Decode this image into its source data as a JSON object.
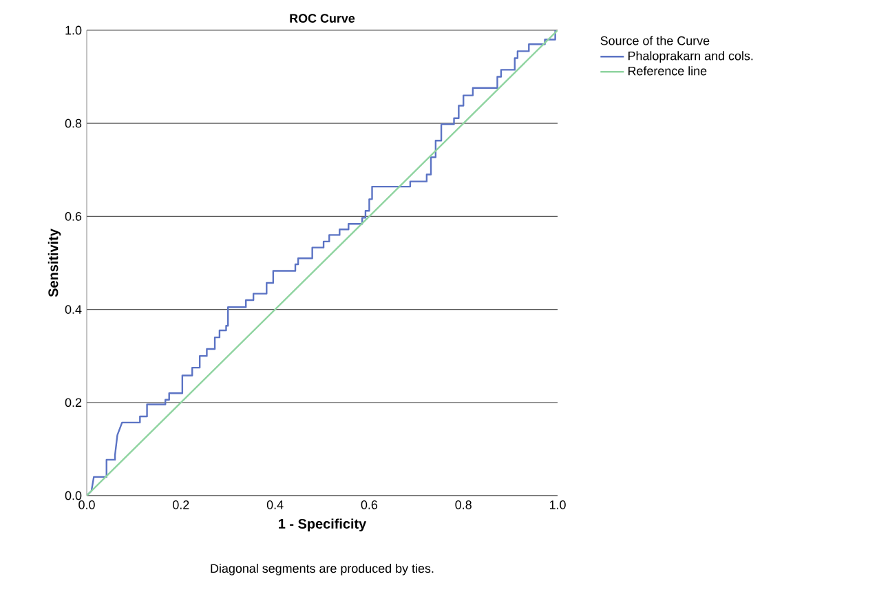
{
  "chart_data": {
    "type": "line",
    "title": "ROC Curve",
    "xlabel": "1 - Specificity",
    "ylabel": "Sensitivity",
    "legend_title": "Source of the Curve",
    "annotations": [
      "Diagonal segments are produced by ties."
    ],
    "xlim": [
      0,
      1
    ],
    "ylim": [
      0,
      1
    ],
    "xticks": [
      {
        "value": 0,
        "label": "0.0"
      },
      {
        "value": 0.2,
        "label": "0.2"
      },
      {
        "value": 0.4,
        "label": "0.4"
      },
      {
        "value": 0.6,
        "label": "0.6"
      },
      {
        "value": 0.8,
        "label": "0.8"
      },
      {
        "value": 1,
        "label": "1.0"
      }
    ],
    "yticks": [
      {
        "value": 0,
        "label": "0.0"
      },
      {
        "value": 0.2,
        "label": "0.2"
      },
      {
        "value": 0.4,
        "label": "0.4"
      },
      {
        "value": 0.6,
        "label": "0.6"
      },
      {
        "value": 0.8,
        "label": "0.8"
      },
      {
        "value": 1,
        "label": "1.0"
      }
    ],
    "grid": "y",
    "legend": "top right",
    "marker": "none",
    "line_style": "solid",
    "series": [
      {
        "name": "Phaloprakarn and cols.",
        "color": "#5b73c4",
        "x": [
          0,
          0.01,
          0.015,
          0.042,
          0.042,
          0.06,
          0.06,
          0.065,
          0.075,
          0.113,
          0.113,
          0.128,
          0.128,
          0.167,
          0.167,
          0.175,
          0.175,
          0.203,
          0.203,
          0.224,
          0.224,
          0.24,
          0.24,
          0.255,
          0.255,
          0.272,
          0.272,
          0.282,
          0.282,
          0.296,
          0.296,
          0.3,
          0.3,
          0.338,
          0.338,
          0.354,
          0.354,
          0.382,
          0.382,
          0.396,
          0.396,
          0.443,
          0.443,
          0.449,
          0.449,
          0.479,
          0.479,
          0.503,
          0.503,
          0.515,
          0.515,
          0.537,
          0.537,
          0.556,
          0.556,
          0.585,
          0.585,
          0.592,
          0.592,
          0.6,
          0.6,
          0.606,
          0.606,
          0.687,
          0.687,
          0.722,
          0.722,
          0.731,
          0.731,
          0.741,
          0.741,
          0.753,
          0.753,
          0.78,
          0.78,
          0.79,
          0.79,
          0.8,
          0.8,
          0.82,
          0.82,
          0.872,
          0.872,
          0.88,
          0.88,
          0.909,
          0.909,
          0.915,
          0.915,
          0.939,
          0.939,
          0.973,
          0.973,
          0.995,
          0.995
        ],
        "values": [
          0,
          0.01,
          0.04,
          0.04,
          0.077,
          0.077,
          0.087,
          0.13,
          0.157,
          0.157,
          0.17,
          0.17,
          0.196,
          0.196,
          0.206,
          0.206,
          0.22,
          0.22,
          0.258,
          0.258,
          0.275,
          0.275,
          0.3,
          0.3,
          0.315,
          0.315,
          0.34,
          0.34,
          0.355,
          0.355,
          0.365,
          0.365,
          0.405,
          0.405,
          0.42,
          0.42,
          0.434,
          0.434,
          0.457,
          0.457,
          0.483,
          0.483,
          0.497,
          0.497,
          0.51,
          0.51,
          0.533,
          0.533,
          0.546,
          0.546,
          0.56,
          0.56,
          0.572,
          0.572,
          0.584,
          0.584,
          0.597,
          0.597,
          0.612,
          0.612,
          0.637,
          0.637,
          0.664,
          0.664,
          0.675,
          0.675,
          0.69,
          0.69,
          0.727,
          0.727,
          0.763,
          0.763,
          0.798,
          0.798,
          0.811,
          0.811,
          0.838,
          0.838,
          0.86,
          0.86,
          0.876,
          0.876,
          0.9,
          0.9,
          0.915,
          0.915,
          0.94,
          0.94,
          0.955,
          0.955,
          0.97,
          0.97,
          0.98,
          0.98,
          1
        ]
      },
      {
        "name": "Reference line",
        "color": "#8fd4a0",
        "x": [
          0,
          1
        ],
        "values": [
          0,
          1
        ]
      }
    ]
  }
}
